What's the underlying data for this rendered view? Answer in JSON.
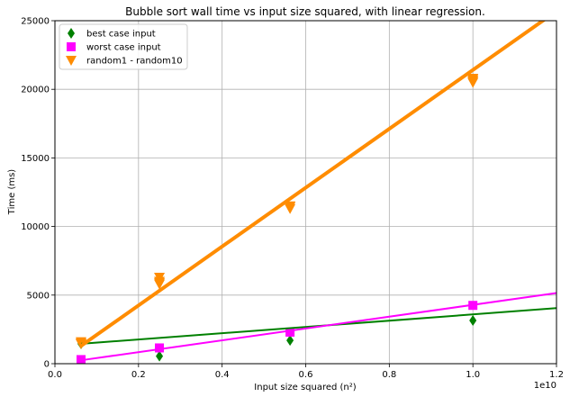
{
  "chart_data": {
    "type": "scatter",
    "title": "Bubble sort wall time vs input size squared, with linear regression.",
    "xlabel": "Input size squared (n²)",
    "ylabel": "Time (ms)",
    "x_offset_label": "1e10",
    "xlim": [
      0,
      1.2
    ],
    "ylim": [
      0,
      25000
    ],
    "x_ticks": [
      0.0,
      0.2,
      0.4,
      0.6,
      0.8,
      1.0,
      1.2
    ],
    "x_tick_labels": [
      "0.0",
      "0.2",
      "0.4",
      "0.6",
      "0.8",
      "1.0",
      "1.2"
    ],
    "y_ticks": [
      0,
      5000,
      10000,
      15000,
      20000,
      25000
    ],
    "y_tick_labels": [
      "0",
      "5000",
      "10000",
      "15000",
      "20000",
      "25000"
    ],
    "grid": true,
    "legend_position": "top-left",
    "series": [
      {
        "name": "best case input",
        "marker": "diamond",
        "color": "#008000",
        "points": [
          [
            0.0625,
            1450
          ],
          [
            0.25,
            550
          ],
          [
            0.5625,
            1700
          ],
          [
            1.0,
            3150
          ]
        ],
        "regression": {
          "x": [
            0.0625,
            1.2
          ],
          "y": [
            1450,
            4050
          ],
          "width": 2
        }
      },
      {
        "name": "worst case input",
        "marker": "square",
        "color": "#ff00ff",
        "points": [
          [
            0.0625,
            300
          ],
          [
            0.25,
            1150
          ],
          [
            0.5625,
            2300
          ],
          [
            1.0,
            4250
          ]
        ],
        "regression": {
          "x": [
            0.0625,
            1.2
          ],
          "y": [
            250,
            5150
          ],
          "width": 2
        }
      },
      {
        "name": "random1 - random10",
        "marker": "triangle-down",
        "color": "#ff8c00",
        "points": [
          [
            0.0625,
            1500
          ],
          [
            0.0625,
            1600
          ],
          [
            0.0625,
            1450
          ],
          [
            0.25,
            6300
          ],
          [
            0.25,
            5800
          ],
          [
            0.25,
            6000
          ],
          [
            0.25,
            5900
          ],
          [
            0.5625,
            11500
          ],
          [
            0.5625,
            11300
          ],
          [
            0.5625,
            11450
          ],
          [
            1.0,
            20800
          ],
          [
            1.0,
            20500
          ],
          [
            1.0,
            20700
          ],
          [
            1.0,
            20600
          ]
        ],
        "regression": {
          "x": [
            0.0625,
            1.2
          ],
          "y": [
            1300,
            25700
          ],
          "width": 4
        }
      }
    ]
  }
}
